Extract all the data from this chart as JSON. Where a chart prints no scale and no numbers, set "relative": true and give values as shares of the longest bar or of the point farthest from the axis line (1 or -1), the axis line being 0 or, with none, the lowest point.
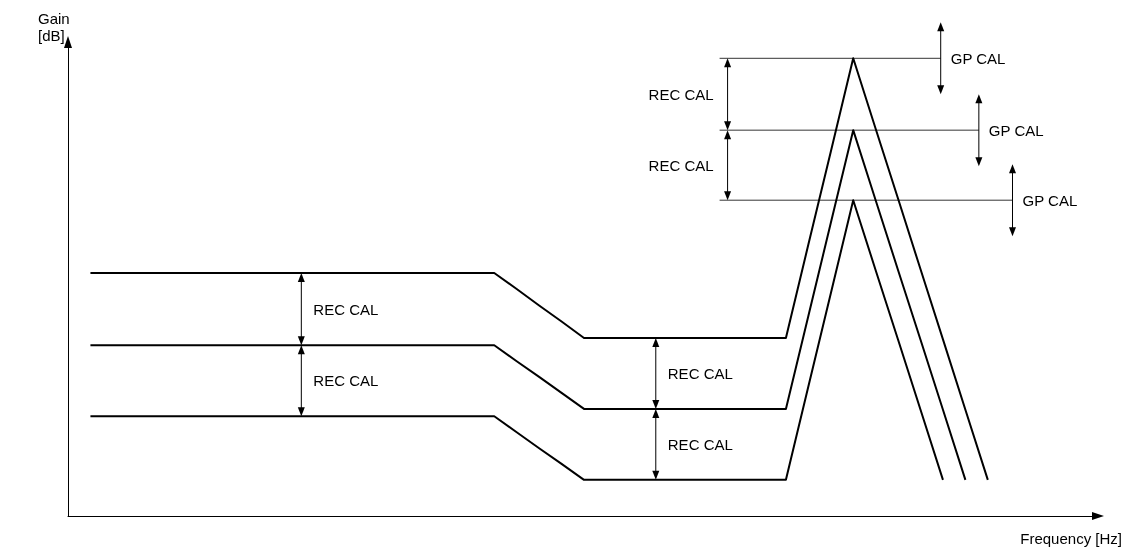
{
  "chart_data": {
    "type": "line",
    "relative": true,
    "xlabel": "Frequency [Hz]",
    "ylabel": "Gain [dB]",
    "marker": "none",
    "grid": false,
    "categories": [
      null,
      null,
      null,
      null,
      null,
      null,
      null,
      null,
      null,
      null,
      null,
      null,
      null,
      null,
      null,
      null,
      null,
      null,
      null,
      null,
      null,
      null,
      null,
      null,
      null,
      null,
      null,
      null,
      null,
      null,
      null,
      null,
      null,
      null,
      null,
      null,
      null,
      null,
      null,
      null,
      null,
      null,
      null,
      null,
      null,
      null,
      null
    ],
    "series": [
      {
        "color": "#000000",
        "values": [
          null,
          0.531,
          0.531,
          0.531,
          0.531,
          0.531,
          0.531,
          0.531,
          0.531,
          0.531,
          0.531,
          0.531,
          0.531,
          0.531,
          0.531,
          0.531,
          0.531,
          0.531,
          0.531,
          0.531,
          0.496,
          0.46,
          0.425,
          0.389,
          0.389,
          0.389,
          0.389,
          0.389,
          0.389,
          0.389,
          0.389,
          0.389,
          0.389,
          0.593,
          0.796,
          1,
          0.846,
          0.693,
          0.539,
          0.386,
          0.232,
          0.079,
          null,
          null,
          null,
          null,
          null
        ]
      },
      {
        "color": "#000000",
        "values": [
          null,
          0.373,
          0.373,
          0.373,
          0.373,
          0.373,
          0.373,
          0.373,
          0.373,
          0.373,
          0.373,
          0.373,
          0.373,
          0.373,
          0.373,
          0.373,
          0.373,
          0.373,
          0.373,
          0.373,
          0.338,
          0.304,
          0.269,
          0.234,
          0.234,
          0.234,
          0.234,
          0.234,
          0.234,
          0.234,
          0.234,
          0.234,
          0.234,
          0.437,
          0.64,
          0.843,
          0.69,
          0.537,
          0.385,
          0.232,
          0.079,
          null,
          null,
          null,
          null,
          null,
          null
        ]
      },
      {
        "color": "#000000",
        "values": [
          null,
          0.218,
          0.218,
          0.218,
          0.218,
          0.218,
          0.218,
          0.218,
          0.218,
          0.218,
          0.218,
          0.218,
          0.218,
          0.218,
          0.218,
          0.218,
          0.218,
          0.218,
          0.218,
          0.218,
          0.183,
          0.148,
          0.114,
          0.079,
          0.079,
          0.079,
          0.079,
          0.079,
          0.079,
          0.079,
          0.079,
          0.079,
          0.079,
          0.283,
          0.486,
          0.69,
          0.537,
          0.385,
          0.232,
          0.079,
          null,
          null,
          null,
          null,
          null,
          null,
          null
        ]
      }
    ],
    "annotations": [
      "REC CAL",
      "REC CAL",
      "REC CAL",
      "REC CAL",
      "REC CAL",
      "REC CAL",
      "GP CAL",
      "GP CAL",
      "GP CAL"
    ]
  }
}
